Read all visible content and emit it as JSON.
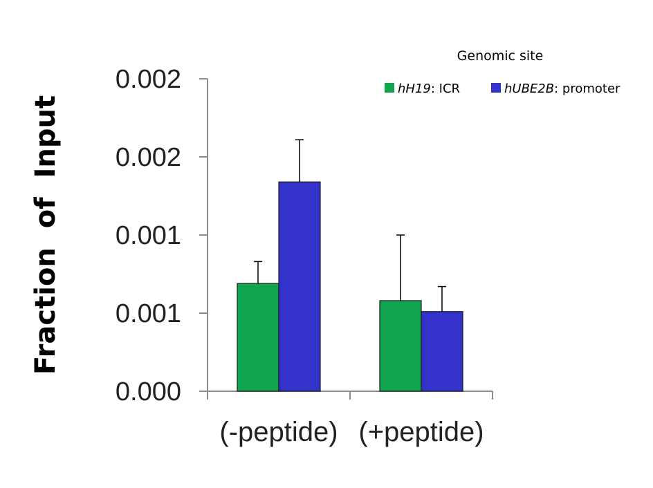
{
  "chart_data": {
    "type": "bar",
    "title": "",
    "xlabel": "",
    "ylabel": "Fraction  of  Input",
    "categories": [
      "(-peptide)",
      "(+peptide)"
    ],
    "y_tick_labels": [
      "0.000",
      "0.001",
      "0.001",
      "0.002",
      "0.002"
    ],
    "y_tick_values": [
      0,
      0.0005,
      0.001,
      0.0015,
      0.002
    ],
    "ylim": [
      0,
      0.002
    ],
    "grid": false,
    "legend": {
      "title": "Genomic site",
      "placement": "top-right"
    },
    "series": [
      {
        "gene": "hH19",
        "suffix": ": ICR",
        "color": "#12A54F",
        "values": [
          0.00069,
          0.00058
        ],
        "errors": [
          0.00014,
          0.00042
        ]
      },
      {
        "gene": "hUBE2B",
        "suffix": ": promoter",
        "color": "#3333CC",
        "values": [
          0.00134,
          0.00051
        ],
        "errors": [
          0.00027,
          0.00016
        ]
      }
    ]
  }
}
